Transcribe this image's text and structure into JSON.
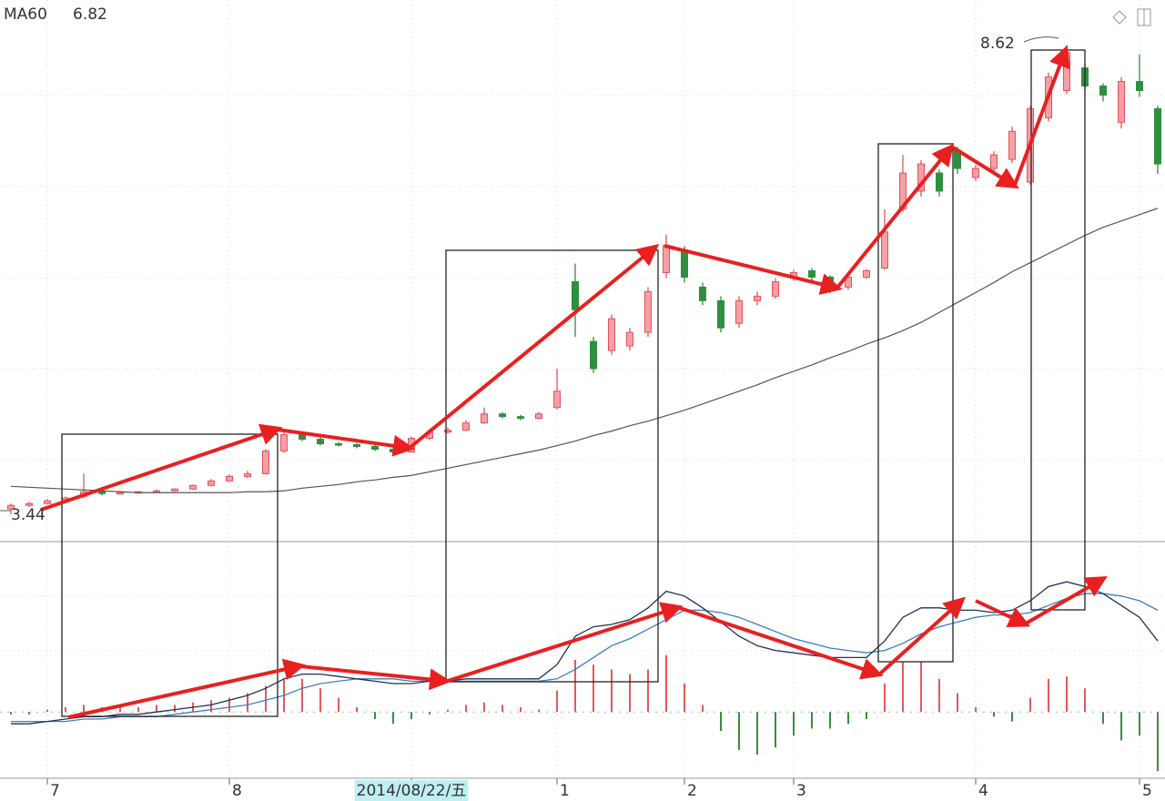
{
  "chart_data": {
    "type": "candlestick",
    "categories": [
      null,
      null,
      "7",
      null,
      null,
      null,
      null,
      null,
      null,
      null,
      null,
      null,
      "8",
      null,
      null,
      null,
      null,
      null,
      null,
      null,
      null,
      null,
      "2014/08/22/五",
      null,
      null,
      null,
      null,
      null,
      null,
      null,
      "1",
      null,
      null,
      null,
      null,
      null,
      null,
      "2",
      null,
      null,
      null,
      null,
      null,
      "3",
      null,
      null,
      null,
      null,
      null,
      null,
      null,
      null,
      null,
      "4",
      null,
      null,
      null,
      null,
      null,
      null,
      null,
      null,
      "5",
      null
    ],
    "open": [
      3.5,
      3.54,
      3.56,
      3.59,
      3.64,
      3.69,
      3.67,
      3.68,
      3.69,
      3.7,
      3.72,
      3.76,
      3.81,
      3.86,
      3.89,
      4.14,
      4.32,
      4.27,
      4.22,
      4.21,
      4.19,
      4.16,
      4.13,
      4.28,
      4.35,
      4.37,
      4.45,
      4.55,
      4.52,
      4.5,
      4.62,
      6.01,
      5.35,
      5.25,
      5.3,
      5.45,
      6.11,
      6.36,
      5.95,
      5.8,
      5.55,
      5.8,
      5.85,
      6.06,
      6.13,
      6.06,
      5.95,
      6.06,
      6.16,
      6.81,
      7.01,
      7.21,
      7.46,
      7.16,
      7.26,
      7.36,
      7.11,
      7.82,
      8.12,
      8.37,
      8.17,
      7.77,
      8.22,
      7.92
    ],
    "high": [
      3.56,
      3.58,
      3.61,
      3.64,
      3.89,
      3.71,
      3.7,
      3.7,
      3.72,
      3.73,
      3.77,
      3.83,
      3.88,
      3.92,
      4.16,
      4.36,
      4.36,
      4.29,
      4.24,
      4.23,
      4.21,
      4.17,
      4.3,
      4.37,
      4.4,
      4.48,
      4.62,
      4.57,
      4.54,
      4.57,
      5.05,
      6.21,
      5.4,
      5.65,
      5.5,
      5.95,
      6.53,
      6.4,
      6.0,
      5.85,
      5.85,
      5.9,
      6.05,
      6.14,
      6.16,
      6.08,
      6.08,
      6.15,
      6.81,
      7.41,
      7.35,
      7.25,
      7.5,
      7.3,
      7.45,
      7.72,
      7.95,
      8.32,
      8.62,
      8.42,
      8.2,
      8.27,
      8.52,
      7.95
    ],
    "low": [
      3.44,
      3.52,
      3.55,
      3.58,
      3.62,
      3.65,
      3.66,
      3.67,
      3.68,
      3.69,
      3.71,
      3.75,
      3.8,
      3.84,
      3.88,
      4.12,
      4.25,
      4.2,
      4.19,
      4.17,
      4.14,
      4.1,
      4.12,
      4.26,
      4.33,
      4.36,
      4.44,
      4.5,
      4.48,
      4.49,
      4.6,
      5.4,
      5.0,
      5.2,
      5.25,
      5.4,
      6.05,
      6.0,
      5.75,
      5.45,
      5.5,
      5.75,
      5.82,
      6.02,
      6.02,
      5.88,
      5.92,
      6.04,
      6.14,
      6.78,
      6.95,
      6.95,
      7.2,
      7.12,
      7.22,
      7.32,
      7.08,
      7.78,
      8.08,
      8.12,
      8.0,
      7.7,
      8.05,
      7.2
    ],
    "close": [
      3.54,
      3.56,
      3.59,
      3.62,
      3.69,
      3.67,
      3.68,
      3.69,
      3.7,
      3.72,
      3.76,
      3.81,
      3.86,
      3.89,
      4.14,
      4.32,
      4.27,
      4.22,
      4.21,
      4.19,
      4.16,
      4.13,
      4.28,
      4.35,
      4.37,
      4.45,
      4.55,
      4.52,
      4.5,
      4.55,
      4.8,
      5.7,
      5.05,
      5.6,
      5.45,
      5.9,
      6.41,
      6.06,
      5.8,
      5.5,
      5.8,
      5.85,
      6.01,
      6.11,
      6.06,
      5.92,
      6.06,
      6.13,
      6.56,
      7.21,
      7.31,
      7.01,
      7.26,
      7.26,
      7.41,
      7.67,
      7.92,
      8.27,
      8.54,
      8.17,
      8.07,
      8.22,
      8.12,
      7.31
    ],
    "up_color": "#e8505a",
    "down_color": "#2f8f3f",
    "ylim": [
      3.14,
      9.12
    ],
    "ma60": {
      "name": "MA60",
      "color": "#555555",
      "values": [
        3.75,
        3.74,
        3.73,
        3.72,
        3.71,
        3.7,
        3.69,
        3.68,
        3.68,
        3.68,
        3.68,
        3.68,
        3.68,
        3.69,
        3.69,
        3.7,
        3.73,
        3.75,
        3.77,
        3.8,
        3.82,
        3.85,
        3.87,
        3.91,
        3.95,
        3.99,
        4.03,
        4.07,
        4.11,
        4.15,
        4.2,
        4.25,
        4.31,
        4.36,
        4.42,
        4.47,
        4.53,
        4.59,
        4.66,
        4.73,
        4.8,
        4.87,
        4.95,
        5.02,
        5.09,
        5.17,
        5.24,
        5.32,
        5.39,
        5.47,
        5.56,
        5.67,
        5.78,
        5.89,
        6.0,
        6.12,
        6.22,
        6.32,
        6.42,
        6.52,
        6.61,
        6.68,
        6.75,
        6.82
      ]
    },
    "macd": {
      "ylim": [
        -0.28,
        0.72
      ],
      "up_color": "#e05a5a",
      "down_color": "#3c8c3c",
      "histogram": [
        -0.01,
        -0.01,
        0.01,
        0.02,
        0.03,
        0.02,
        0.02,
        0.02,
        0.03,
        0.03,
        0.04,
        0.05,
        0.06,
        0.08,
        0.11,
        0.14,
        0.14,
        0.1,
        0.06,
        0.02,
        -0.03,
        -0.05,
        -0.03,
        -0.01,
        0.01,
        0.03,
        0.04,
        0.03,
        0.02,
        0.01,
        0.09,
        0.22,
        0.2,
        0.18,
        0.16,
        0.18,
        0.24,
        0.12,
        0.03,
        -0.08,
        -0.16,
        -0.18,
        -0.15,
        -0.1,
        -0.07,
        -0.07,
        -0.05,
        -0.03,
        0.12,
        0.21,
        0.21,
        0.14,
        0.08,
        0.02,
        -0.02,
        -0.04,
        0.06,
        0.14,
        0.15,
        0.1,
        -0.05,
        -0.12,
        -0.1,
        -0.25
      ],
      "dif": {
        "color": "#1f3250",
        "values": [
          -0.05,
          -0.05,
          -0.04,
          -0.03,
          -0.02,
          -0.02,
          -0.01,
          -0.01,
          0.0,
          0.01,
          0.02,
          0.03,
          0.05,
          0.07,
          0.1,
          0.14,
          0.16,
          0.16,
          0.15,
          0.14,
          0.13,
          0.12,
          0.12,
          0.13,
          0.13,
          0.14,
          0.14,
          0.14,
          0.14,
          0.14,
          0.2,
          0.32,
          0.36,
          0.37,
          0.39,
          0.44,
          0.51,
          0.49,
          0.44,
          0.38,
          0.32,
          0.28,
          0.26,
          0.25,
          0.24,
          0.23,
          0.23,
          0.23,
          0.3,
          0.4,
          0.44,
          0.44,
          0.43,
          0.43,
          0.42,
          0.43,
          0.47,
          0.53,
          0.55,
          0.53,
          0.5,
          0.45,
          0.4,
          0.3
        ]
      },
      "dea": {
        "color": "#3c7fc0",
        "values": [
          -0.04,
          -0.04,
          -0.04,
          -0.04,
          -0.03,
          -0.03,
          -0.02,
          -0.02,
          -0.02,
          -0.01,
          0.0,
          0.01,
          0.02,
          0.03,
          0.05,
          0.07,
          0.1,
          0.12,
          0.13,
          0.14,
          0.14,
          0.14,
          0.13,
          0.13,
          0.13,
          0.13,
          0.13,
          0.13,
          0.13,
          0.13,
          0.14,
          0.18,
          0.23,
          0.28,
          0.31,
          0.35,
          0.39,
          0.43,
          0.43,
          0.42,
          0.4,
          0.37,
          0.34,
          0.31,
          0.29,
          0.27,
          0.26,
          0.25,
          0.26,
          0.29,
          0.33,
          0.36,
          0.38,
          0.4,
          0.41,
          0.41,
          0.42,
          0.45,
          0.48,
          0.5,
          0.5,
          0.49,
          0.47,
          0.43
        ]
      }
    }
  }
}
